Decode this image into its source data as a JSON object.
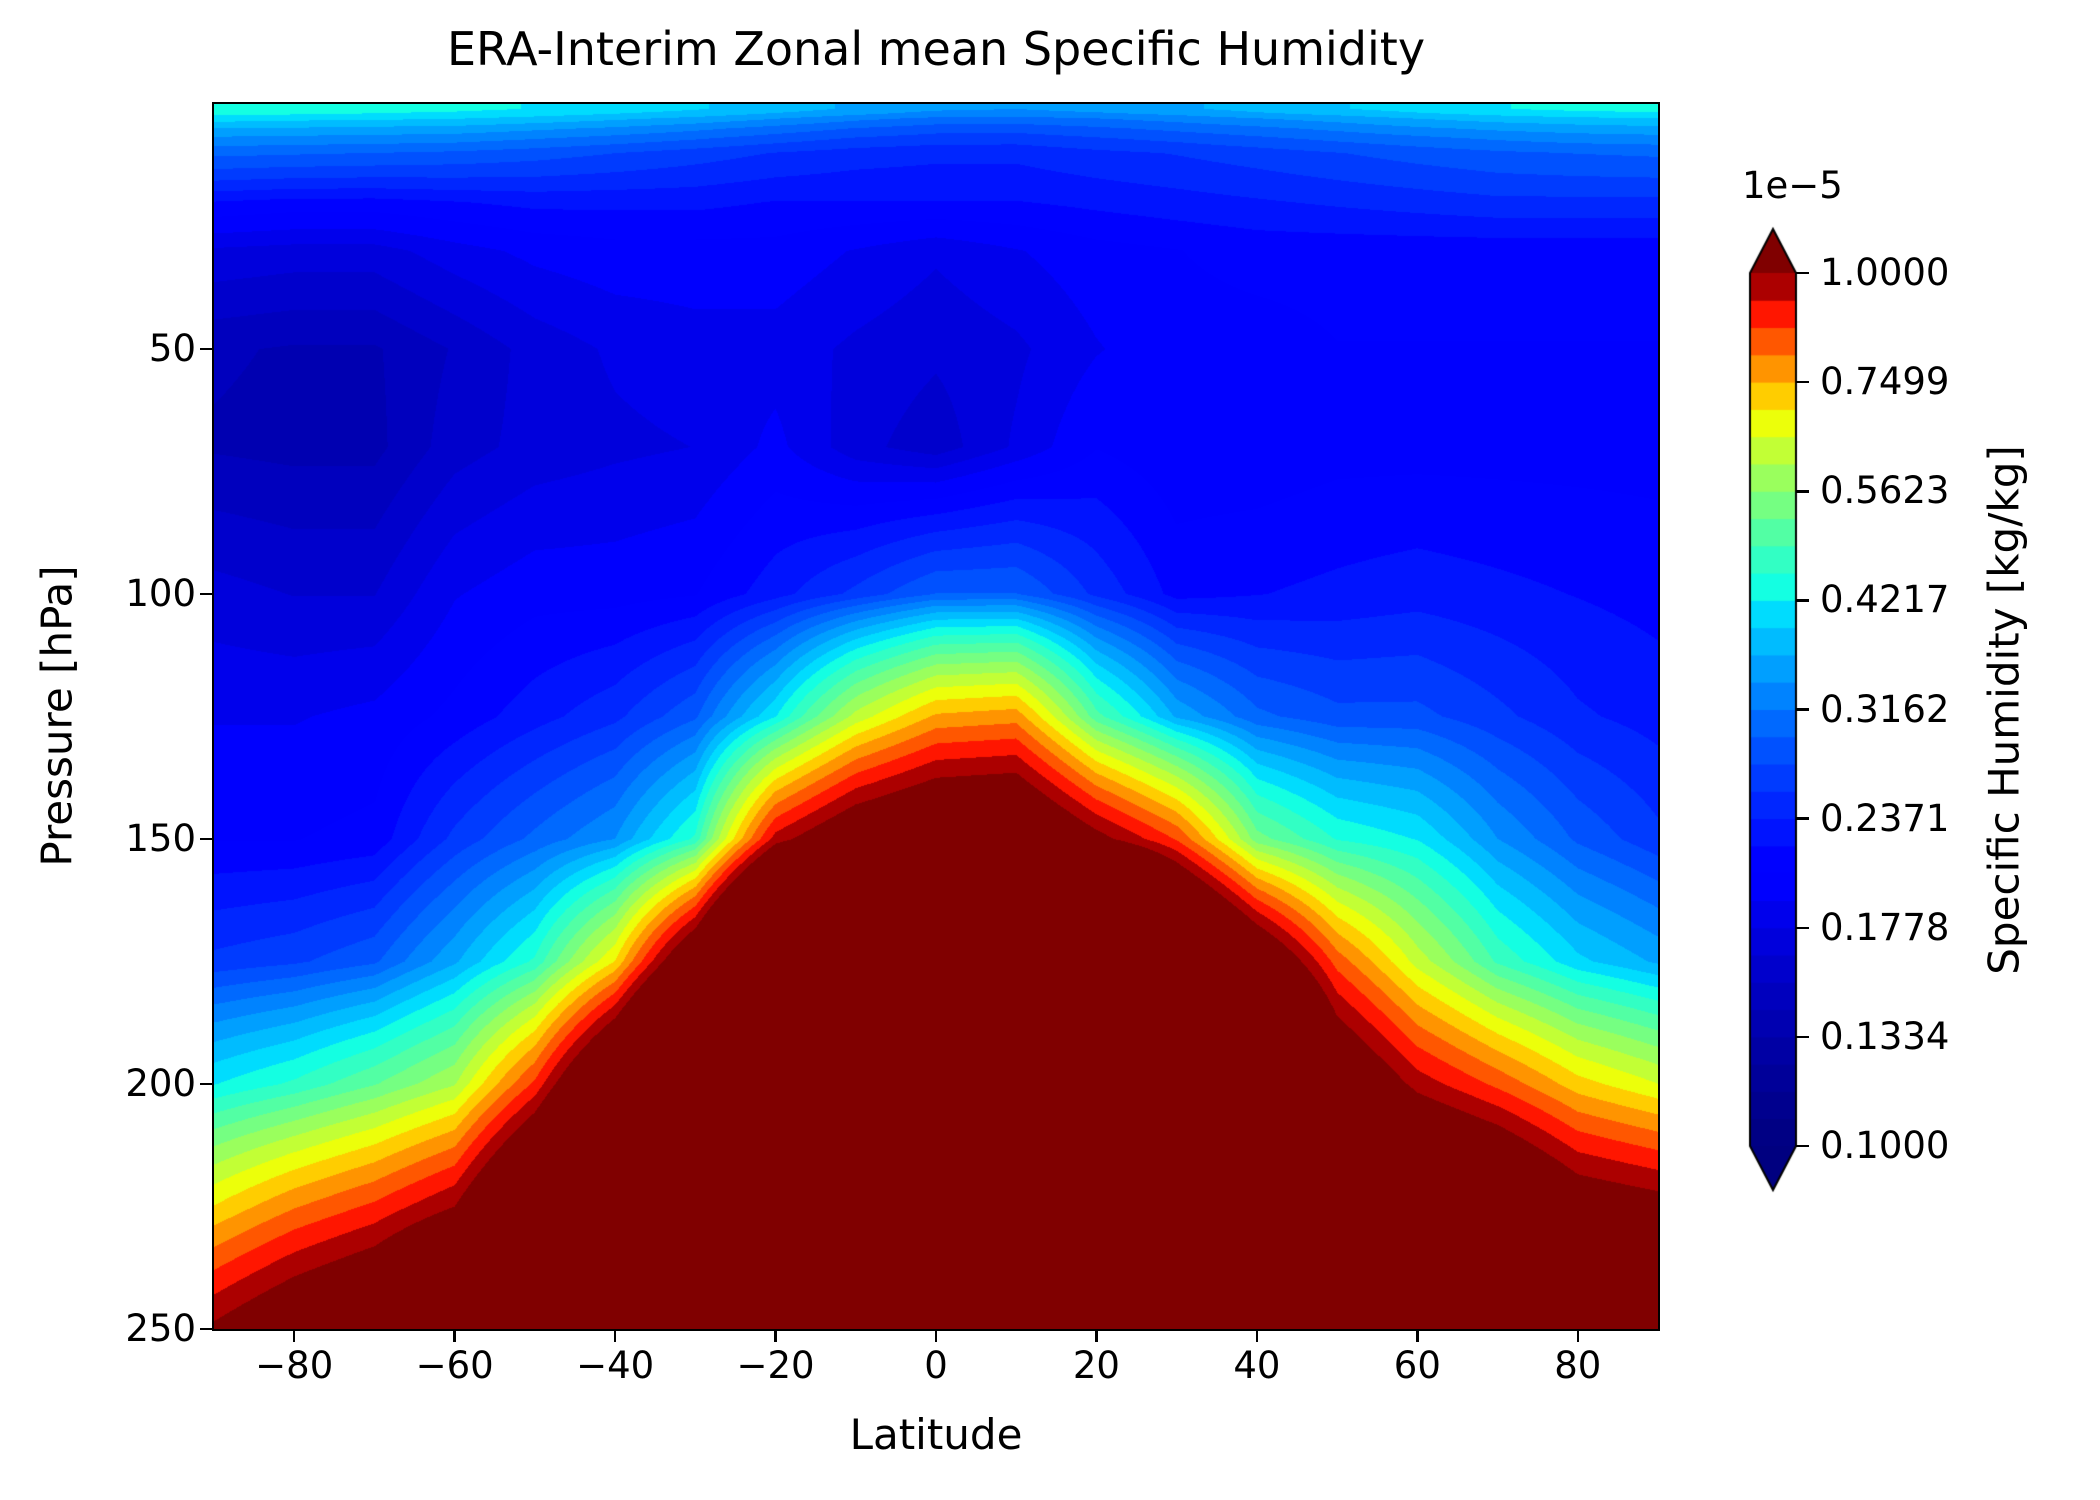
{
  "title": "ERA-Interim Zonal mean Specific Humidity",
  "x_axis": {
    "label": "Latitude",
    "tick_labels": [
      "−80",
      "−60",
      "−40",
      "−20",
      "0",
      "20",
      "40",
      "60",
      "80"
    ],
    "tick_values": [
      -80,
      -60,
      -40,
      -20,
      0,
      20,
      40,
      60,
      80
    ],
    "range": [
      -90,
      90
    ]
  },
  "y_axis": {
    "label": "Pressure [hPa]",
    "tick_labels": [
      "50",
      "100",
      "150",
      "200",
      "250"
    ],
    "tick_values": [
      50,
      100,
      150,
      200,
      250
    ],
    "range": [
      250,
      0
    ],
    "inverted": true
  },
  "colorbar": {
    "scale_label": "1e−5",
    "axis_label": "Specific Humidity [kg/kg]",
    "tick_labels": [
      "1.0000",
      "0.7499",
      "0.5623",
      "0.4217",
      "0.3162",
      "0.2371",
      "0.1778",
      "0.1334",
      "0.1000"
    ],
    "tick_values_1e5": [
      1.0,
      0.7499,
      0.5623,
      0.4217,
      0.3162,
      0.2371,
      0.1778,
      0.1334,
      0.1
    ],
    "colormap": "jet",
    "extend": "both",
    "n_bands": 32,
    "scale": "log"
  },
  "chart_data": {
    "type": "heatmap",
    "title": "ERA-Interim Zonal mean Specific Humidity",
    "xlabel": "Latitude",
    "ylabel": "Pressure [hPa]",
    "legend_position": "right-colorbar",
    "grid": "off",
    "units": "kg/kg",
    "value_scale": 1e-06,
    "contour_levels": "32 log-spaced filled bands from 1e-6 to 1e-5 kg/kg, extended both ends",
    "vmin_kgkg": 1e-06,
    "vmax_kgkg": 1e-05,
    "xlim": [
      -90,
      90
    ],
    "ylim_hPa": [
      250,
      0
    ],
    "latitude": [
      -90,
      -80,
      -70,
      -60,
      -50,
      -40,
      -30,
      -20,
      -10,
      0,
      10,
      20,
      30,
      40,
      50,
      60,
      70,
      80,
      90
    ],
    "pressure_hPa": [
      1,
      2,
      3,
      5,
      7,
      10,
      20,
      30,
      50,
      70,
      100,
      125,
      150,
      175,
      200,
      225,
      250
    ],
    "specific_humidity_1e6_kgkg": [
      [
        4.45,
        4.4,
        4.35,
        4.3,
        4.2,
        4.1,
        3.95,
        3.8,
        3.6,
        3.45,
        3.4,
        3.5,
        3.6,
        3.75,
        3.9,
        4.05,
        4.2,
        4.3,
        4.35
      ],
      [
        4.3,
        4.25,
        4.2,
        4.15,
        4.05,
        3.92,
        3.8,
        3.62,
        3.45,
        3.3,
        3.28,
        3.35,
        3.45,
        3.6,
        3.72,
        3.88,
        4.0,
        4.1,
        4.15
      ],
      [
        4.05,
        4.0,
        3.97,
        3.93,
        3.82,
        3.7,
        3.57,
        3.4,
        3.22,
        3.1,
        3.08,
        3.15,
        3.25,
        3.38,
        3.5,
        3.65,
        3.77,
        3.85,
        3.9
      ],
      [
        3.65,
        3.62,
        3.58,
        3.55,
        3.45,
        3.35,
        3.22,
        3.07,
        2.93,
        2.83,
        2.82,
        2.9,
        3.0,
        3.1,
        3.22,
        3.35,
        3.45,
        3.52,
        3.57
      ],
      [
        3.35,
        3.32,
        3.3,
        3.27,
        3.18,
        3.08,
        2.97,
        2.84,
        2.72,
        2.65,
        2.64,
        2.72,
        2.8,
        2.9,
        3.0,
        3.1,
        3.2,
        3.27,
        3.3
      ],
      [
        3.0,
        2.97,
        2.94,
        2.9,
        2.83,
        2.74,
        2.64,
        2.54,
        2.46,
        2.42,
        2.42,
        2.5,
        2.56,
        2.64,
        2.73,
        2.82,
        2.9,
        2.95,
        2.98
      ],
      [
        2.2,
        2.15,
        2.15,
        2.2,
        2.25,
        2.25,
        2.25,
        2.2,
        2.2,
        2.2,
        2.2,
        2.25,
        2.3,
        2.35,
        2.4,
        2.45,
        2.5,
        2.5,
        2.5
      ],
      [
        1.75,
        1.72,
        1.72,
        1.85,
        1.95,
        2.0,
        2.0,
        2.0,
        1.9,
        1.8,
        1.9,
        2.0,
        2.05,
        2.1,
        2.1,
        2.1,
        2.1,
        2.1,
        2.1
      ],
      [
        1.45,
        1.42,
        1.42,
        1.55,
        1.7,
        1.8,
        1.85,
        1.85,
        1.75,
        1.68,
        1.75,
        1.9,
        2.0,
        2.0,
        2.05,
        2.05,
        2.05,
        2.05,
        2.05
      ],
      [
        1.42,
        1.4,
        1.4,
        1.6,
        1.7,
        1.75,
        1.78,
        1.95,
        1.7,
        1.58,
        1.8,
        2.05,
        1.95,
        1.95,
        2.0,
        2.0,
        2.0,
        2.0,
        2.0
      ],
      [
        1.7,
        1.65,
        1.65,
        1.9,
        2.0,
        2.0,
        2.05,
        2.3,
        2.6,
        2.95,
        2.95,
        2.5,
        2.15,
        2.2,
        2.25,
        2.3,
        2.25,
        2.2,
        2.15
      ],
      [
        1.9,
        1.9,
        1.95,
        2.1,
        2.3,
        2.5,
        2.9,
        4.2,
        6.2,
        7.6,
        7.8,
        5.0,
        3.6,
        3.0,
        2.8,
        2.8,
        2.6,
        2.4,
        2.3
      ],
      [
        2.05,
        2.05,
        2.1,
        2.6,
        3.0,
        3.4,
        4.6,
        9.6,
        11.5,
        12.4,
        12.6,
        10.4,
        8.6,
        5.4,
        4.5,
        4.2,
        3.4,
        2.9,
        2.6
      ],
      [
        2.6,
        2.7,
        2.9,
        3.6,
        4.6,
        7.0,
        12.0,
        20.0,
        26.0,
        30.0,
        30.0,
        24.0,
        16.0,
        12.0,
        8.4,
        6.3,
        4.8,
        4.0,
        3.6
      ],
      [
        4.2,
        4.6,
        5.2,
        6.0,
        8.8,
        13.5,
        20.0,
        30.0,
        38.0,
        43.0,
        43.0,
        36.0,
        26.0,
        19.0,
        12.0,
        9.7,
        8.5,
        7.2,
        6.5
      ],
      [
        7.0,
        8.0,
        8.8,
        10.0,
        14.0,
        20.0,
        30.0,
        44.0,
        55.0,
        62.0,
        62.0,
        52.0,
        38.0,
        28.0,
        18.0,
        14.0,
        13.0,
        11.0,
        10.5
      ],
      [
        10.2,
        11.5,
        12.5,
        15.0,
        22.0,
        30.0,
        44.0,
        62.0,
        78.0,
        88.0,
        88.0,
        75.0,
        55.0,
        42.0,
        28.0,
        22.0,
        19.0,
        17.0,
        16.0
      ]
    ]
  }
}
